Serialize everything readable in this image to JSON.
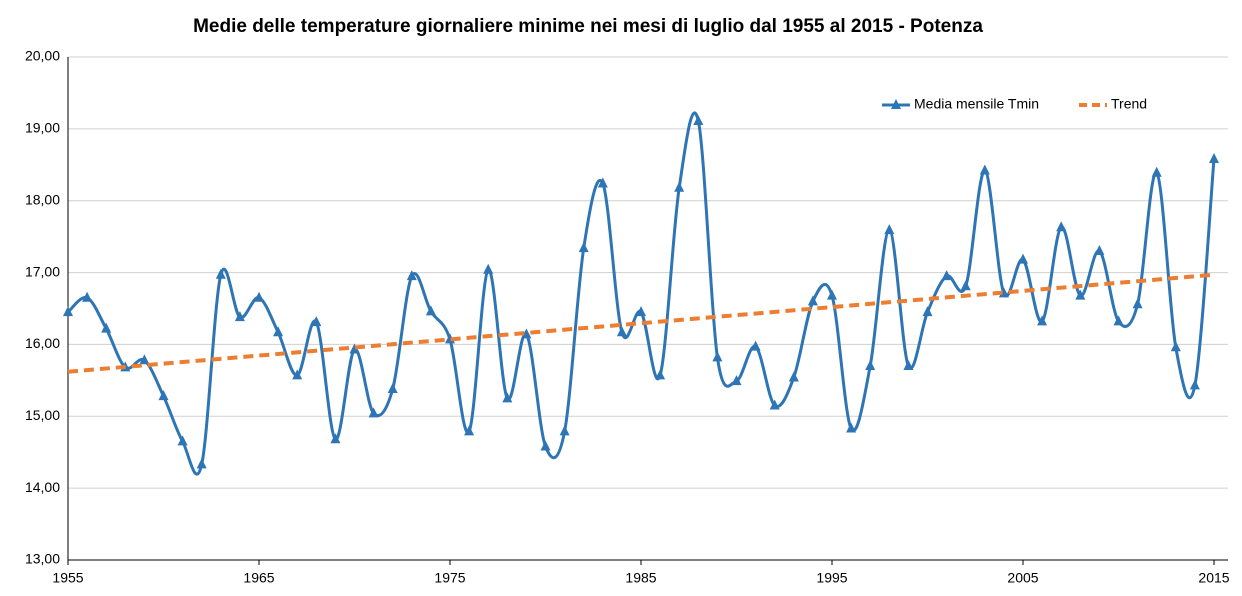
{
  "chart_data": {
    "type": "line",
    "title": "Medie delle temperature giornaliere minime nei mesi di luglio dal 1955 al 2015 - Potenza",
    "x": [
      1955,
      1956,
      1957,
      1958,
      1959,
      1960,
      1961,
      1962,
      1963,
      1964,
      1965,
      1966,
      1967,
      1968,
      1969,
      1970,
      1971,
      1972,
      1973,
      1974,
      1975,
      1976,
      1977,
      1978,
      1979,
      1980,
      1981,
      1982,
      1983,
      1984,
      1985,
      1986,
      1987,
      1988,
      1989,
      1990,
      1991,
      1992,
      1993,
      1994,
      1995,
      1996,
      1997,
      1998,
      1999,
      2000,
      2001,
      2002,
      2003,
      2004,
      2005,
      2006,
      2007,
      2008,
      2009,
      2010,
      2011,
      2012,
      2013,
      2014,
      2015
    ],
    "series": [
      {
        "name": "Media mensile Tmin",
        "color": "#2e75b6",
        "smooth": true,
        "marker": "triangle",
        "values": [
          16.45,
          16.65,
          16.22,
          15.68,
          15.78,
          15.28,
          14.65,
          14.33,
          16.97,
          16.38,
          16.65,
          16.17,
          15.57,
          16.31,
          14.68,
          15.93,
          15.04,
          15.38,
          16.95,
          16.46,
          16.07,
          14.79,
          17.04,
          15.25,
          16.14,
          14.58,
          14.79,
          17.34,
          18.24,
          16.17,
          16.45,
          15.57,
          18.18,
          19.11,
          15.82,
          15.49,
          15.97,
          15.15,
          15.54,
          16.6,
          16.68,
          14.83,
          15.7,
          17.59,
          15.7,
          16.45,
          16.95,
          16.81,
          18.42,
          16.71,
          17.18,
          16.32,
          17.63,
          16.68,
          17.3,
          16.32,
          16.56,
          18.39,
          15.96,
          15.43,
          18.58
        ]
      },
      {
        "name": "Trend",
        "color": "#ed7d31",
        "dashed": true,
        "x": [
          1955,
          2015
        ],
        "values": [
          15.62,
          16.97
        ]
      }
    ],
    "xlim": [
      1955,
      2015
    ],
    "xticks": [
      1955,
      1965,
      1975,
      1985,
      1995,
      2005,
      2015
    ],
    "ylim": [
      13,
      20
    ],
    "yticks": [
      {
        "value": 13,
        "label": "13,00"
      },
      {
        "value": 14,
        "label": "14,00"
      },
      {
        "value": 15,
        "label": "15,00"
      },
      {
        "value": 16,
        "label": "16,00"
      },
      {
        "value": 17,
        "label": "17,00"
      },
      {
        "value": 18,
        "label": "18,00"
      },
      {
        "value": 19,
        "label": "19,00"
      },
      {
        "value": 20,
        "label": "20,00"
      }
    ],
    "grid": true,
    "legend": "top-right"
  }
}
